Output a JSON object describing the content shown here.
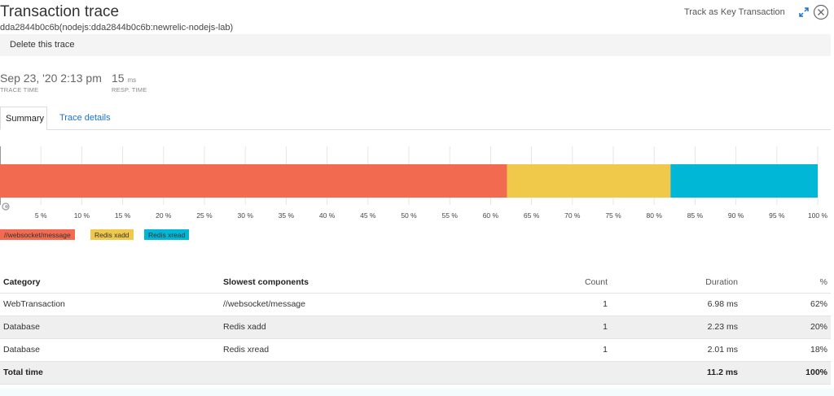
{
  "header": {
    "title": "Transaction trace",
    "subtitle": "dda2844b0c6b(nodejs:dda2844b0c6b:newrelic-nodejs-lab)",
    "track_label": "Track as Key Transaction"
  },
  "toolbar": {
    "delete_label": "Delete this trace"
  },
  "metrics": {
    "trace_time": {
      "value": "Sep 23, '20 2:13 pm",
      "label": "TRACE TIME"
    },
    "resp_time": {
      "value": "15",
      "unit": "ms",
      "label": "RESP. TIME"
    }
  },
  "tabs": [
    {
      "label": "Summary",
      "active": true
    },
    {
      "label": "Trace details",
      "active": false
    }
  ],
  "chart_data": {
    "type": "bar",
    "orientation": "horizontal-stacked",
    "x_ticks": [
      "5 %",
      "10 %",
      "15 %",
      "20 %",
      "25 %",
      "30 %",
      "35 %",
      "40 %",
      "45 %",
      "50 %",
      "55 %",
      "60 %",
      "65 %",
      "70 %",
      "75 %",
      "80 %",
      "85 %",
      "90 %",
      "95 %",
      "100 %"
    ],
    "xlim": [
      0,
      100
    ],
    "grid": true,
    "series": [
      {
        "name": "//websocket/message",
        "value": 62,
        "color": "#f26b50"
      },
      {
        "name": "Redis xadd",
        "value": 20,
        "color": "#f0c94b"
      },
      {
        "name": "Redis xread",
        "value": 18,
        "color": "#00b7d6"
      }
    ]
  },
  "table": {
    "headers": {
      "category": "Category",
      "component": "Slowest components",
      "count": "Count",
      "duration": "Duration",
      "percent": "%"
    },
    "rows": [
      {
        "category": "WebTransaction",
        "component": "//websocket/message",
        "count": "1",
        "duration": "6.98 ms",
        "percent": "62%"
      },
      {
        "category": "Database",
        "component": "Redis xadd",
        "count": "1",
        "duration": "2.23 ms",
        "percent": "20%"
      },
      {
        "category": "Database",
        "component": "Redis xread",
        "count": "1",
        "duration": "2.01 ms",
        "percent": "18%"
      }
    ],
    "total": {
      "label": "Total time",
      "duration": "11.2 ms",
      "percent": "100%"
    }
  }
}
